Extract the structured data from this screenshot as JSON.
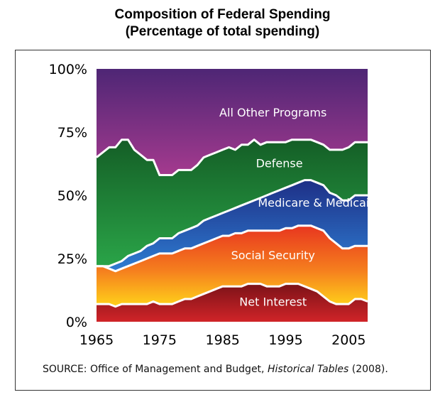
{
  "chart_data": {
    "type": "area",
    "title": "Composition of Federal Spending",
    "subtitle": "(Percentage of total spending)",
    "stacked": true,
    "x": [
      1965,
      1966,
      1967,
      1968,
      1969,
      1970,
      1971,
      1972,
      1973,
      1974,
      1975,
      1976,
      1977,
      1978,
      1979,
      1980,
      1981,
      1982,
      1983,
      1984,
      1985,
      1986,
      1987,
      1988,
      1989,
      1990,
      1991,
      1992,
      1993,
      1994,
      1995,
      1996,
      1997,
      1998,
      1999,
      2000,
      2001,
      2002,
      2003,
      2004,
      2005,
      2006,
      2007,
      2008
    ],
    "xlim": [
      1965,
      2008
    ],
    "xticks": [
      "1965",
      "1975",
      "1985",
      "1995",
      "2005"
    ],
    "ylim": [
      0,
      100
    ],
    "yticks": [
      "0%",
      "25%",
      "50%",
      "75%",
      "100%"
    ],
    "series": [
      {
        "name": "Net Interest",
        "values": [
          7,
          7,
          7,
          6,
          7,
          7,
          7,
          7,
          7,
          8,
          7,
          7,
          7,
          8,
          9,
          9,
          10,
          11,
          12,
          13,
          14,
          14,
          14,
          14,
          15,
          15,
          15,
          14,
          14,
          14,
          15,
          15,
          15,
          14,
          13,
          12,
          10,
          8,
          7,
          7,
          7,
          9,
          9,
          8
        ]
      },
      {
        "name": "Social Security",
        "values": [
          15,
          15,
          14,
          14,
          14,
          15,
          16,
          17,
          18,
          18,
          20,
          20,
          20,
          20,
          20,
          20,
          20,
          20,
          20,
          20,
          20,
          20,
          21,
          21,
          21,
          21,
          21,
          22,
          22,
          22,
          22,
          22,
          23,
          24,
          25,
          25,
          26,
          25,
          24,
          22,
          22,
          21,
          21,
          22
        ]
      },
      {
        "name": "Medicare & Medicaid",
        "values": [
          0,
          0,
          1,
          3,
          3,
          4,
          4,
          4,
          5,
          5,
          6,
          6,
          6,
          7,
          7,
          8,
          8,
          9,
          9,
          9,
          9,
          10,
          10,
          11,
          11,
          12,
          13,
          14,
          15,
          16,
          16,
          17,
          17,
          18,
          18,
          18,
          18,
          18,
          19,
          19,
          19,
          20,
          20,
          20
        ]
      },
      {
        "name": "Defense",
        "values": [
          43,
          45,
          47,
          46,
          48,
          46,
          41,
          38,
          34,
          33,
          25,
          25,
          25,
          25,
          24,
          23,
          24,
          25,
          25,
          25,
          25,
          25,
          23,
          24,
          23,
          24,
          21,
          21,
          20,
          19,
          18,
          18,
          17,
          16,
          16,
          16,
          16,
          17,
          18,
          20,
          21,
          21,
          21,
          21
        ]
      },
      {
        "name": "All Other Programs",
        "values": [
          35,
          33,
          31,
          31,
          28,
          28,
          32,
          34,
          36,
          36,
          42,
          42,
          42,
          40,
          40,
          40,
          38,
          35,
          34,
          33,
          32,
          31,
          32,
          30,
          30,
          28,
          30,
          29,
          29,
          29,
          29,
          28,
          28,
          28,
          28,
          29,
          30,
          32,
          32,
          32,
          31,
          29,
          29,
          29
        ]
      }
    ],
    "labels": [
      "All Other Programs",
      "Defense",
      "Medicare & Medicaid",
      "Social Security",
      "Net Interest"
    ],
    "grid": false,
    "legend": "none"
  },
  "source": {
    "prefix": "SOURCE: Office of Management and Budget, ",
    "italic": "Historical Tables",
    "suffix": " (2008)."
  }
}
